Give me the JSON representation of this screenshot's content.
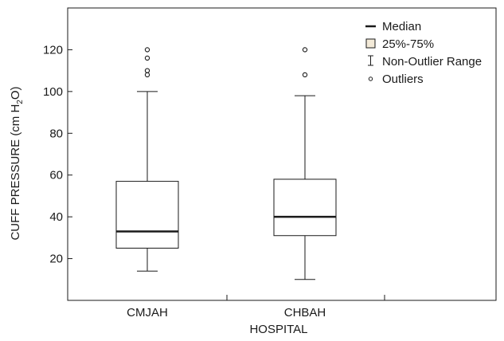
{
  "chart_data": {
    "type": "box",
    "xlabel": "HOSPITAL",
    "ylabel_parts": [
      "CUFF PRESSURE (cm H",
      "2",
      "O)"
    ],
    "ylim": [
      0,
      140
    ],
    "yticks": [
      20,
      40,
      60,
      80,
      100,
      120
    ],
    "categories": [
      "CMJAH",
      "CHBAH"
    ],
    "series": [
      {
        "category": "CMJAH",
        "whisker_low": 14,
        "q1": 25,
        "median": 33,
        "q3": 57,
        "whisker_high": 100,
        "outliers": [
          108,
          110,
          116,
          120
        ]
      },
      {
        "category": "CHBAH",
        "whisker_low": 10,
        "q1": 31,
        "median": 40,
        "q3": 58,
        "whisker_high": 98,
        "outliers": [
          108,
          120
        ]
      }
    ],
    "legend": {
      "position": "top-right",
      "items": [
        {
          "symbol": "median",
          "label": "Median"
        },
        {
          "symbol": "box",
          "label": "25%-75%"
        },
        {
          "symbol": "range",
          "label": "Non-Outlier Range"
        },
        {
          "symbol": "outlier",
          "label": "Outliers"
        }
      ]
    },
    "grid": false,
    "colors": {
      "line": "#1a1a1a",
      "box_fill": "#ffffff",
      "legend_box_fill": "#f3ead8"
    }
  }
}
